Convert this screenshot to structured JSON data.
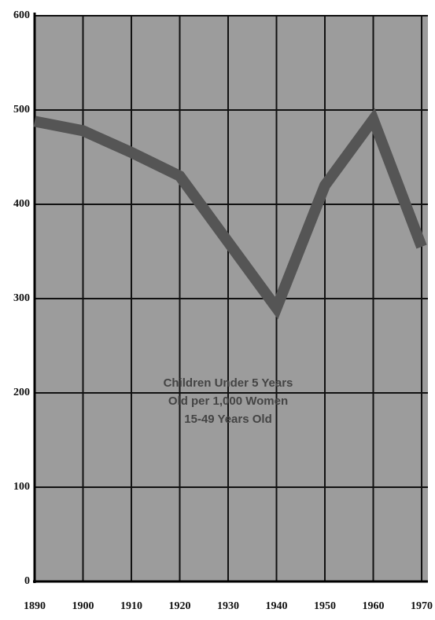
{
  "chart_data": {
    "type": "line",
    "annotation": [
      "Children Under 5 Years",
      "Old per 1,000 Women",
      "15-49 Years Old"
    ],
    "x": [
      1890,
      1900,
      1910,
      1920,
      1930,
      1940,
      1950,
      1960,
      1970
    ],
    "values": [
      488,
      478,
      455,
      430,
      360,
      290,
      420,
      490,
      355
    ],
    "color": "#555555",
    "xlim": [
      1890,
      1970
    ],
    "xticks": [
      1890,
      1900,
      1910,
      1920,
      1930,
      1940,
      1950,
      1960,
      1970
    ],
    "ylim": [
      0,
      600
    ],
    "yticks": [
      0,
      100,
      200,
      300,
      400,
      500,
      600
    ],
    "grid": true
  }
}
